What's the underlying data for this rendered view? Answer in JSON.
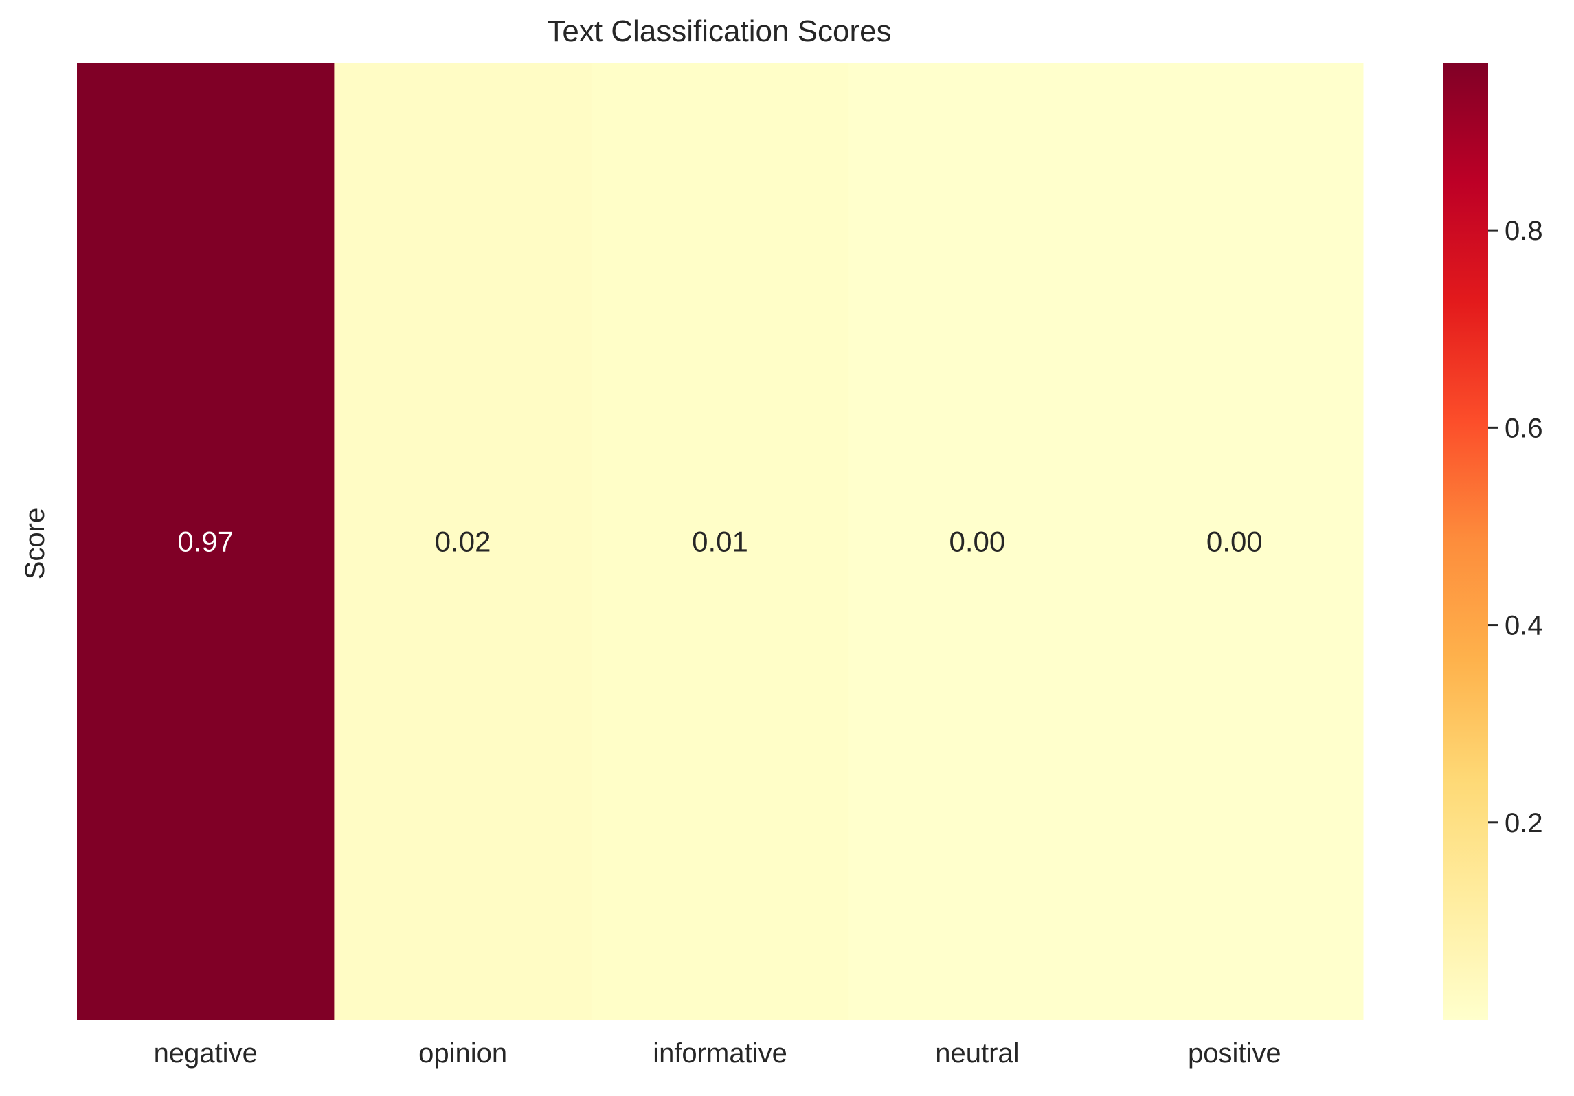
{
  "chart_data": {
    "type": "heatmap",
    "title": "Text Classification Scores",
    "xlabel": "",
    "ylabel": "Score",
    "categories": [
      "negative",
      "opinion",
      "informative",
      "neutral",
      "positive"
    ],
    "rows": [
      "Score"
    ],
    "values": [
      [
        0.97,
        0.02,
        0.01,
        0.0,
        0.0
      ]
    ],
    "value_labels": [
      "0.97",
      "0.02",
      "0.01",
      "0.00",
      "0.00"
    ],
    "colormap": "YlOrRd",
    "colorbar": {
      "range": [
        0.0,
        0.97
      ],
      "ticks": [
        0.2,
        0.4,
        0.6,
        0.8
      ],
      "tick_labels": [
        "0.2",
        "0.4",
        "0.6",
        "0.8"
      ]
    },
    "colormap_stops": [
      "#ffffcc",
      "#ffeda0",
      "#fed976",
      "#feb24c",
      "#fd8d3c",
      "#fc4e2a",
      "#e31a1c",
      "#bd0026",
      "#800026"
    ],
    "grid": false
  }
}
